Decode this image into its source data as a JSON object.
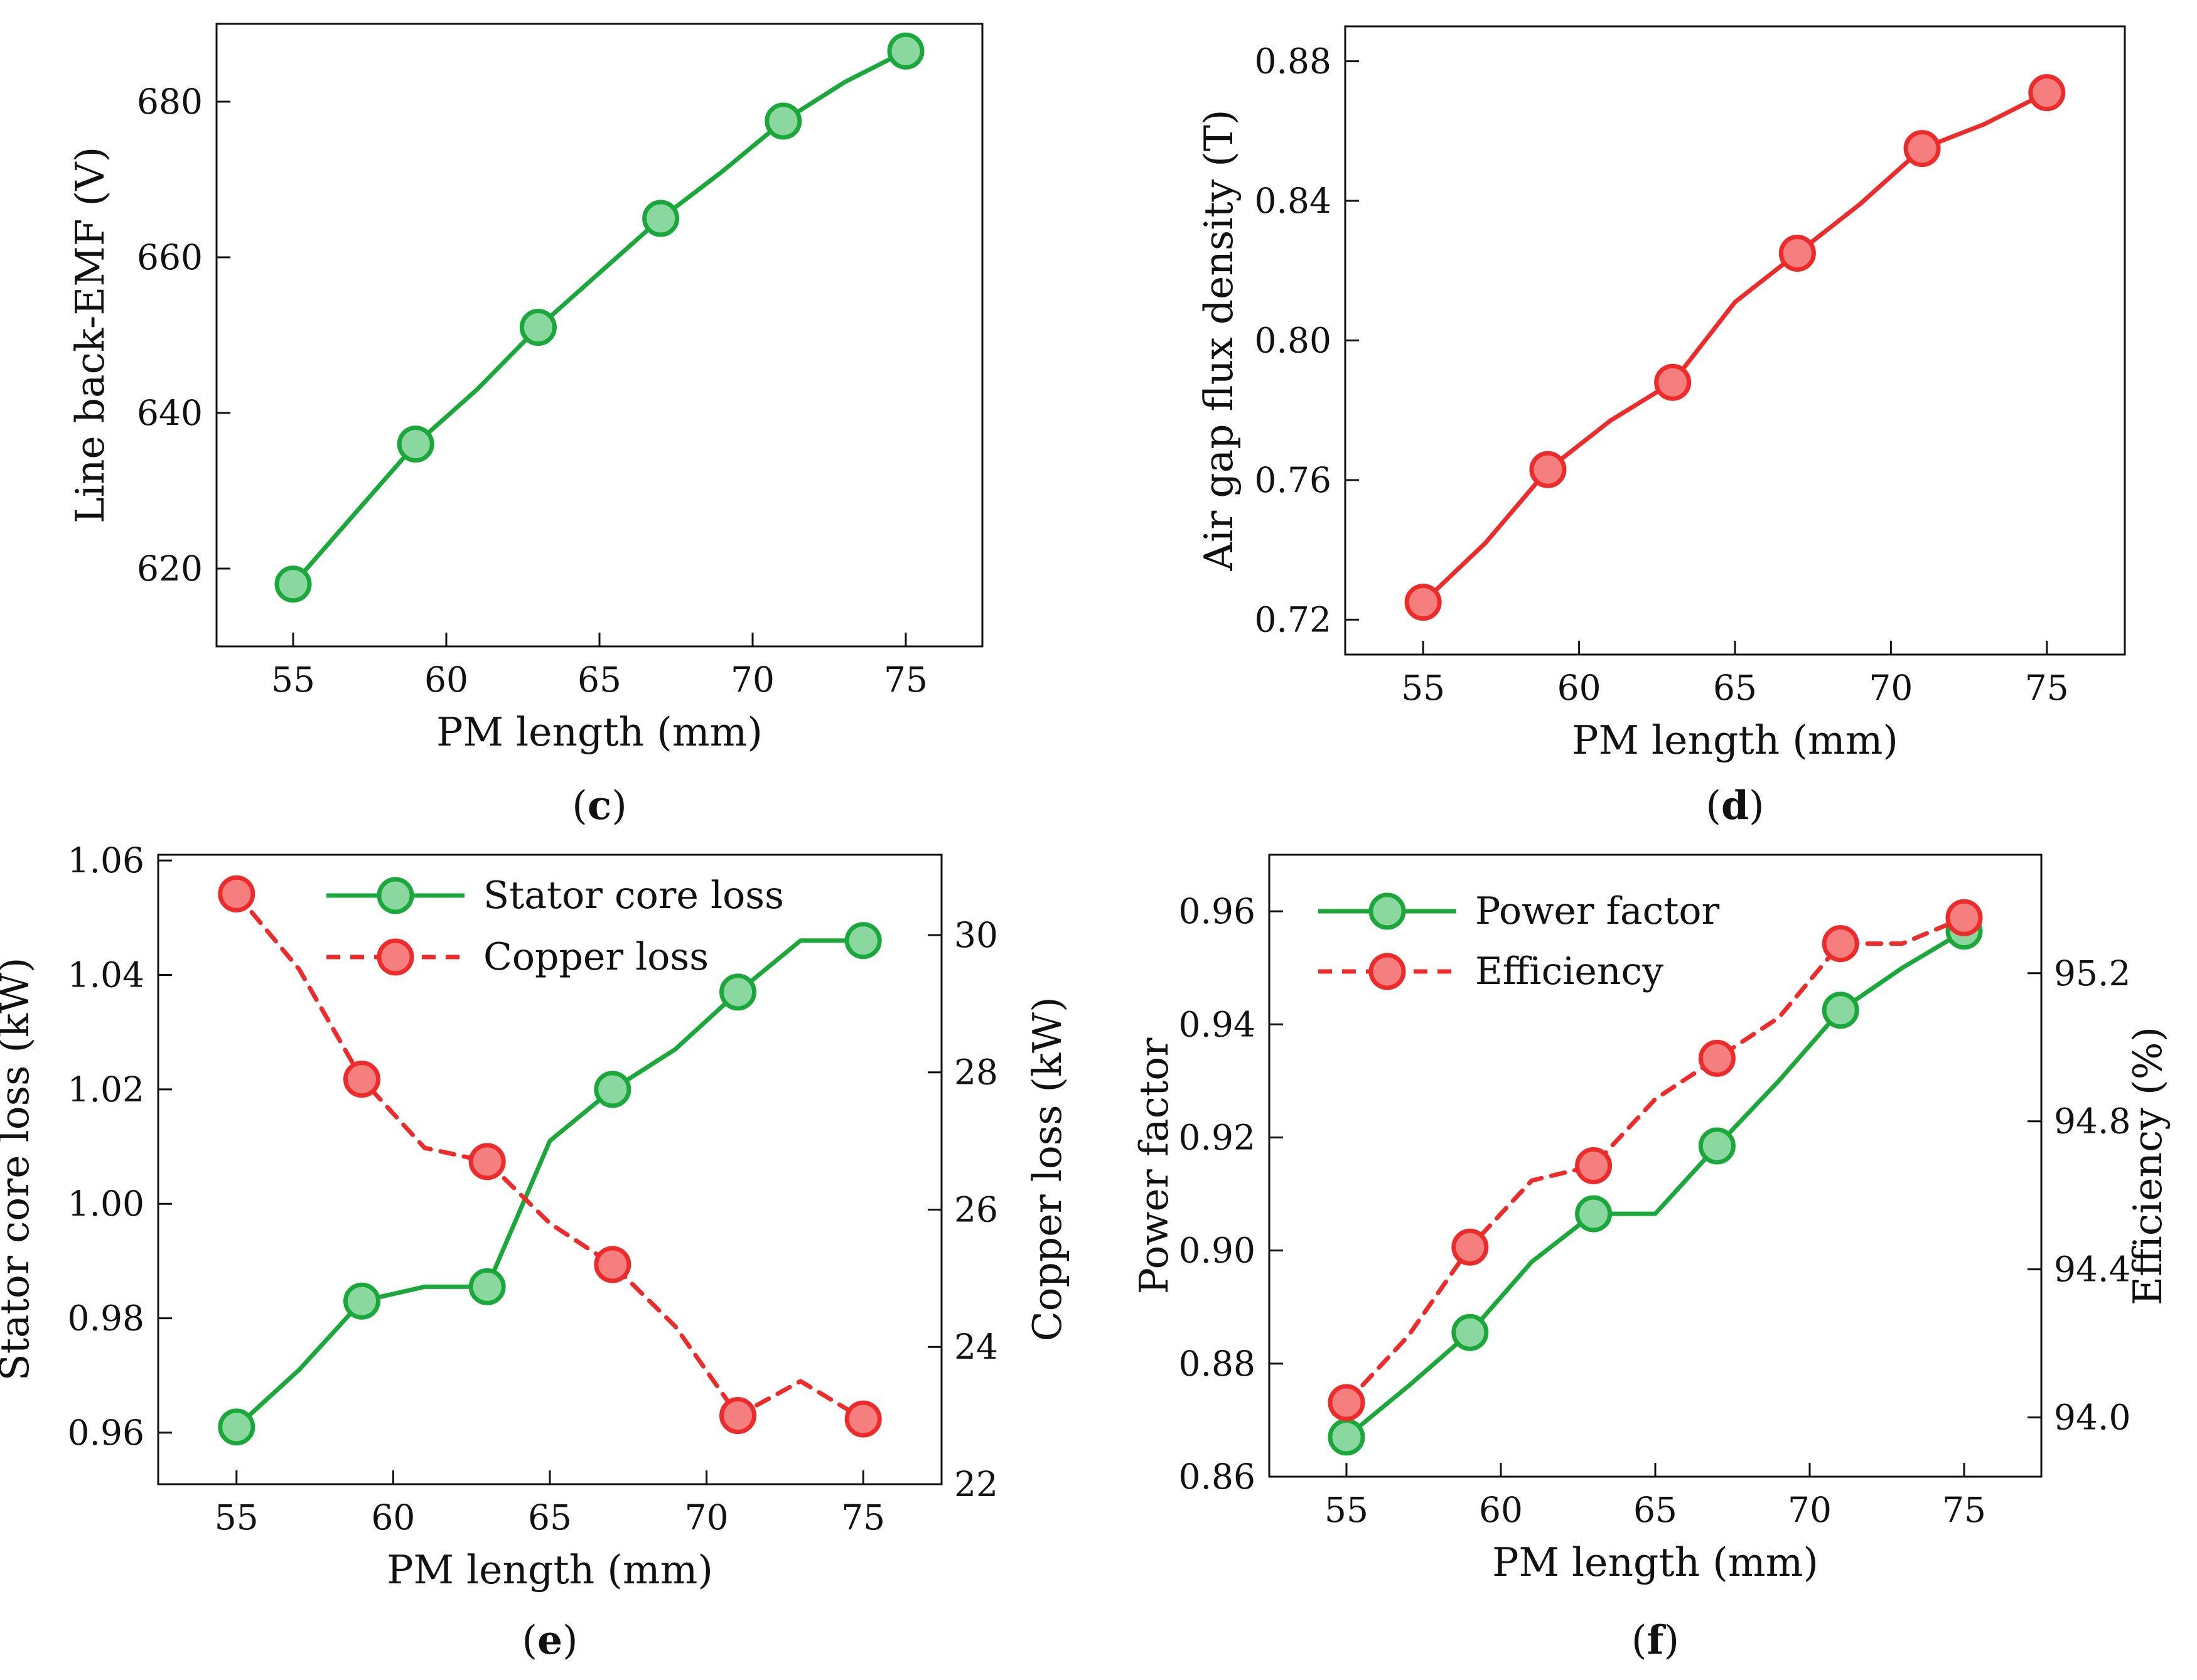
{
  "colors": {
    "green_line": "#1aa83a",
    "green_fill": "#8ad8a0",
    "red_line": "#ee2b2b",
    "red_fill": "#f57f7f",
    "axis": "#111111"
  },
  "chart_data": [
    {
      "id": "c",
      "type": "line",
      "caption": {
        "open": "(",
        "letter": "c",
        "close": ")"
      },
      "xlabel": "PM length (mm)",
      "ylabel": "Line back-EMF (V)",
      "xlim": [
        52.5,
        77.5
      ],
      "ylim": [
        610,
        690
      ],
      "xticks": [
        55,
        60,
        65,
        70,
        75
      ],
      "yticks": [
        620,
        640,
        660,
        680
      ],
      "ytick_labels": [
        "620",
        "640",
        "660",
        "680"
      ],
      "series": [
        {
          "name": "Line back-EMF",
          "style": "green",
          "dashed": false,
          "line_x": [
            55,
            57,
            59,
            61,
            63,
            65,
            67,
            69,
            71,
            73,
            75
          ],
          "line_y": [
            618,
            627,
            636,
            643,
            651,
            658,
            665,
            671,
            677.5,
            682.5,
            686.5
          ],
          "marker_x": [
            55,
            59,
            63,
            67,
            71,
            75
          ],
          "marker_y": [
            618,
            636,
            651,
            665,
            677.5,
            686.5
          ]
        }
      ]
    },
    {
      "id": "d",
      "type": "line",
      "caption": {
        "open": "(",
        "letter": "d",
        "close": ")"
      },
      "xlabel": "PM length (mm)",
      "ylabel": "Air gap flux density (T)",
      "xlim": [
        52.5,
        77.5
      ],
      "ylim": [
        0.71,
        0.89
      ],
      "xticks": [
        55,
        60,
        65,
        70,
        75
      ],
      "yticks": [
        0.72,
        0.76,
        0.8,
        0.84,
        0.88
      ],
      "ytick_labels": [
        "0.72",
        "0.76",
        "0.80",
        "0.84",
        "0.88"
      ],
      "series": [
        {
          "name": "Air gap flux density",
          "style": "red",
          "dashed": false,
          "line_x": [
            55,
            57,
            59,
            61,
            63,
            65,
            67,
            69,
            71,
            73,
            75
          ],
          "line_y": [
            0.725,
            0.742,
            0.763,
            0.777,
            0.788,
            0.811,
            0.825,
            0.839,
            0.855,
            0.862,
            0.871
          ],
          "marker_x": [
            55,
            59,
            63,
            67,
            71,
            75
          ],
          "marker_y": [
            0.725,
            0.763,
            0.788,
            0.825,
            0.855,
            0.871
          ]
        }
      ]
    },
    {
      "id": "e",
      "type": "line",
      "caption": {
        "open": "(",
        "letter": "e",
        "close": ")"
      },
      "xlabel": "PM length (mm)",
      "ylabel": "Stator core loss (kW)",
      "ylabel_right": "Copper loss (kW)",
      "xlim": [
        52.5,
        77.5
      ],
      "ylim": [
        0.951,
        1.061
      ],
      "ylim_right": [
        22,
        31.17
      ],
      "xticks": [
        55,
        60,
        65,
        70,
        75
      ],
      "yticks": [
        0.96,
        0.98,
        1.0,
        1.02,
        1.04,
        1.06
      ],
      "ytick_labels": [
        "0.96",
        "0.98",
        "1.00",
        "1.02",
        "1.04",
        "1.06"
      ],
      "yticks_right": [
        22,
        24,
        26,
        28,
        30
      ],
      "ytick_labels_right": [
        "22",
        "24",
        "26",
        "28",
        "30"
      ],
      "legend": [
        "Stator core loss",
        "Copper loss"
      ],
      "series": [
        {
          "name": "Stator core loss",
          "axis": "left",
          "style": "green",
          "dashed": false,
          "line_x": [
            55,
            57,
            59,
            61,
            63,
            65,
            67,
            69,
            71,
            73,
            75
          ],
          "line_y": [
            0.961,
            0.971,
            0.983,
            0.9855,
            0.9855,
            1.011,
            1.02,
            1.027,
            1.037,
            1.046,
            1.046
          ],
          "marker_x": [
            55,
            59,
            63,
            67,
            71,
            75
          ],
          "marker_y": [
            0.961,
            0.983,
            0.9855,
            1.02,
            1.037,
            1.046
          ]
        },
        {
          "name": "Copper loss",
          "axis": "right",
          "style": "red",
          "dashed": true,
          "line_x": [
            55,
            57,
            59,
            61,
            63,
            65,
            67,
            69,
            71,
            73,
            75
          ],
          "line_y": [
            30.6,
            29.5,
            27.9,
            26.9,
            26.7,
            25.8,
            25.2,
            24.3,
            23.0,
            23.5,
            22.95
          ],
          "marker_x": [
            55,
            59,
            63,
            67,
            71,
            75
          ],
          "marker_y": [
            30.6,
            27.9,
            26.7,
            25.2,
            23.0,
            22.95
          ]
        }
      ]
    },
    {
      "id": "f",
      "type": "line",
      "caption": {
        "open": "(",
        "letter": "f",
        "close": ")"
      },
      "xlabel": "PM length (mm)",
      "ylabel": "Power factor",
      "ylabel_right": "Efficiency (%)",
      "xlim": [
        52.5,
        77.5
      ],
      "ylim": [
        0.86,
        0.97
      ],
      "ylim_right": [
        93.84,
        95.52
      ],
      "xticks": [
        55,
        60,
        65,
        70,
        75
      ],
      "yticks": [
        0.86,
        0.88,
        0.9,
        0.92,
        0.94,
        0.96
      ],
      "ytick_labels": [
        "0.86",
        "0.88",
        "0.90",
        "0.92",
        "0.94",
        "0.96"
      ],
      "yticks_right": [
        94.0,
        94.4,
        94.8,
        95.2
      ],
      "ytick_labels_right": [
        "94.0",
        "94.4",
        "94.8",
        "95.2"
      ],
      "legend": [
        "Power factor",
        "Efficiency"
      ],
      "series": [
        {
          "name": "Power factor",
          "axis": "left",
          "style": "green",
          "dashed": false,
          "line_x": [
            55,
            57,
            59,
            61,
            63,
            65,
            67,
            69,
            71,
            73,
            75
          ],
          "line_y": [
            0.867,
            0.876,
            0.8855,
            0.898,
            0.9065,
            0.9065,
            0.9185,
            0.93,
            0.9425,
            0.95,
            0.9565
          ],
          "marker_x": [
            55,
            59,
            63,
            67,
            71,
            75
          ],
          "marker_y": [
            0.867,
            0.8855,
            0.9065,
            0.9185,
            0.9425,
            0.9565
          ]
        },
        {
          "name": "Efficiency",
          "axis": "right",
          "style": "red",
          "dashed": true,
          "line_x": [
            55,
            57,
            59,
            61,
            63,
            65,
            67,
            69,
            71,
            73,
            75
          ],
          "line_y": [
            94.04,
            94.22,
            94.46,
            94.64,
            94.68,
            94.86,
            94.97,
            95.08,
            95.28,
            95.28,
            95.35
          ],
          "marker_x": [
            55,
            59,
            63,
            67,
            71,
            75
          ],
          "marker_y": [
            94.04,
            94.46,
            94.68,
            94.97,
            95.28,
            95.35
          ]
        }
      ]
    }
  ]
}
